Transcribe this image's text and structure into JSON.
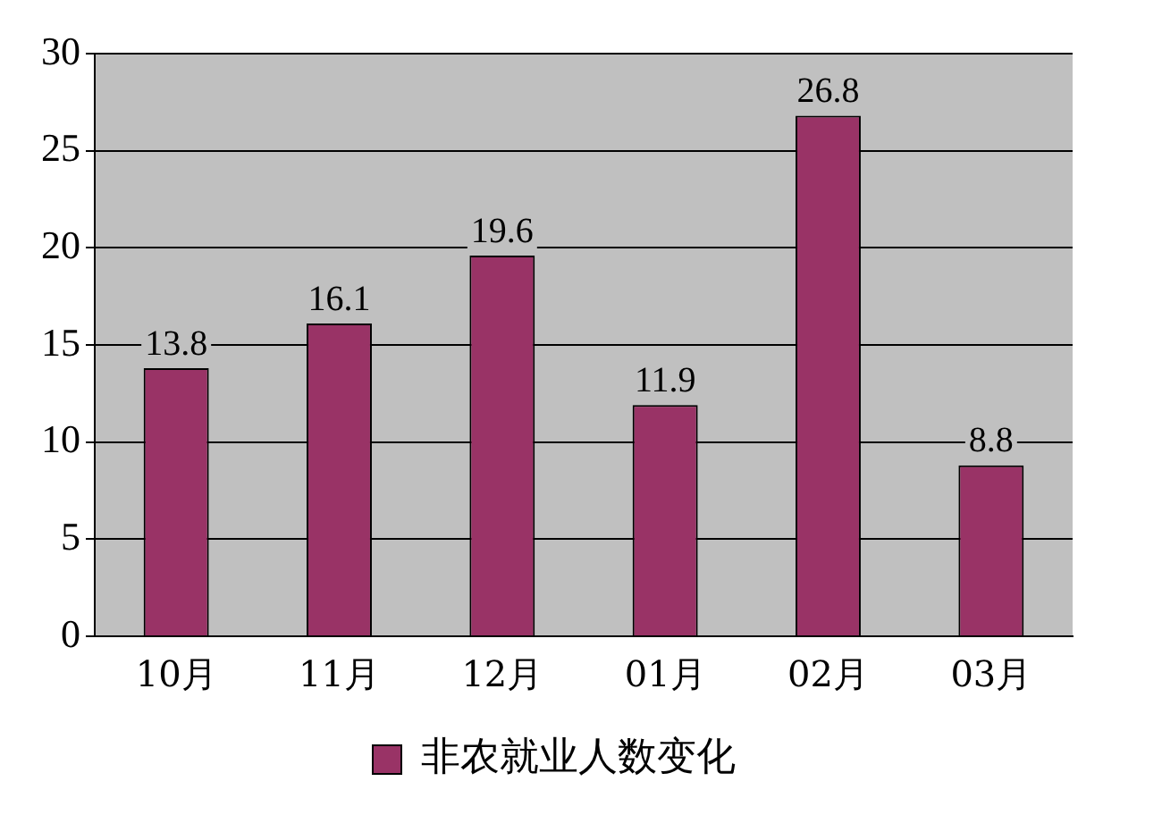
{
  "chart_data": {
    "type": "bar",
    "categories": [
      "10月",
      "11月",
      "12月",
      "01月",
      "02月",
      "03月"
    ],
    "series": [
      {
        "name": "非农就业人数变化",
        "color": "#993366",
        "values": [
          13.8,
          16.1,
          19.6,
          11.9,
          26.8,
          8.8
        ]
      }
    ],
    "ylim": [
      0,
      30
    ],
    "yticks": [
      0,
      5,
      10,
      15,
      20,
      25,
      30
    ],
    "grid": "y",
    "legend": "bottom",
    "data_labels": true
  }
}
